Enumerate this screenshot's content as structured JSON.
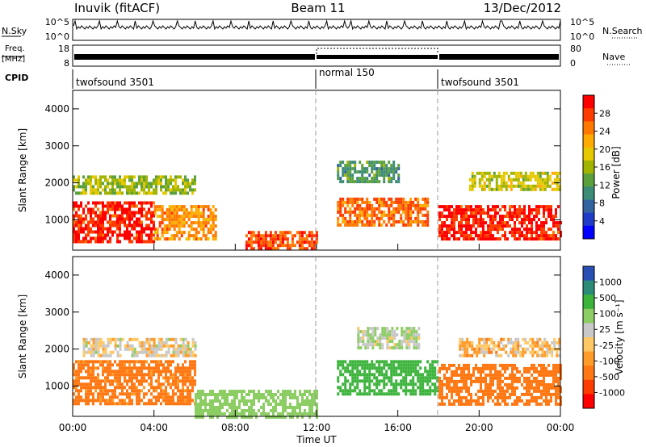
{
  "header": {
    "station": "Inuvik (fitACF)",
    "beam": "Beam 11",
    "date": "13/Dec/2012"
  },
  "noise_panel": {
    "left_label": "N.Sky",
    "right_label": "N.Search",
    "ticks_left": [
      "10^5",
      "10^0"
    ],
    "ticks_right": [
      "10^5",
      "10^0"
    ]
  },
  "freq_panel": {
    "left_label_1": "Freq.",
    "left_label_2": "[MHz]",
    "right_label": "Nave",
    "ticks_left": [
      "18",
      "8"
    ],
    "ticks_right": [
      "80",
      "0"
    ]
  },
  "cpid": {
    "label": "CPID",
    "segments": [
      {
        "name": "twofsound 3501",
        "start_hour": 0,
        "end_hour": 12
      },
      {
        "name": "normal 150",
        "start_hour": 12,
        "end_hour": 18
      },
      {
        "name": "twofsound 3501",
        "start_hour": 18,
        "end_hour": 24
      }
    ]
  },
  "power_colorbar": {
    "label": "Power [dB]",
    "ticks": [
      "28",
      "24",
      "20",
      "16",
      "12",
      "8",
      "4"
    ],
    "colors": [
      "#ff0000",
      "#ff3c00",
      "#ff7800",
      "#ffaa00",
      "#e6c800",
      "#a0b400",
      "#5aa03c",
      "#3c8c78",
      "#3264a0",
      "#1e3cc8",
      "#0000ff"
    ]
  },
  "velocity_colorbar": {
    "label": "Velocity [m s⁻¹]",
    "ticks": [
      "1000",
      "500",
      "100",
      "25",
      "-25",
      "-100",
      "-500",
      "-1000"
    ],
    "colors": [
      "#2850b4",
      "#2d8c78",
      "#3cb43c",
      "#8ccd64",
      "#c8c8c8",
      "#ffc864",
      "#ff9b28",
      "#ff7814",
      "#ff3c00",
      "#ff0000"
    ]
  },
  "chart_data": [
    {
      "type": "heatmap",
      "quantity": "Power",
      "ylabel": "Slant Range [km]",
      "xlabel": "Time UT",
      "xlim": [
        0,
        24
      ],
      "ylim": [
        180,
        4500
      ],
      "yticks": [
        "1000",
        "2000",
        "3000",
        "4000"
      ],
      "xticks": [
        "00:00",
        "04:00",
        "08:00",
        "12:00",
        "16:00",
        "20:00",
        "00:00"
      ],
      "mode_change_hours": [
        12,
        18
      ],
      "bands": [
        {
          "t_start": 0.0,
          "t_end": 4.0,
          "range_low": 400,
          "range_high": 1500,
          "value": 28
        },
        {
          "t_start": 0.0,
          "t_end": 6.0,
          "range_low": 1700,
          "range_high": 2200,
          "value": 14
        },
        {
          "t_start": 4.0,
          "t_end": 7.0,
          "range_low": 500,
          "range_high": 1400,
          "value": 22
        },
        {
          "t_start": 8.5,
          "t_end": 12.0,
          "range_low": 200,
          "range_high": 700,
          "value": 26
        },
        {
          "t_start": 13.0,
          "t_end": 17.5,
          "range_low": 900,
          "range_high": 1600,
          "value": 24
        },
        {
          "t_start": 13.0,
          "t_end": 16.0,
          "range_low": 2000,
          "range_high": 2600,
          "value": 10
        },
        {
          "t_start": 18.0,
          "t_end": 24.0,
          "range_low": 500,
          "range_high": 1400,
          "value": 28
        },
        {
          "t_start": 19.5,
          "t_end": 24.0,
          "range_low": 1800,
          "range_high": 2300,
          "value": 16
        }
      ]
    },
    {
      "type": "heatmap",
      "quantity": "Velocity",
      "ylabel": "Slant Range [km]",
      "xlabel": "Time UT",
      "xlim": [
        0,
        24
      ],
      "ylim": [
        180,
        4500
      ],
      "yticks": [
        "1000",
        "2000",
        "3000",
        "4000"
      ],
      "xticks": [
        "00:00",
        "04:00",
        "08:00",
        "12:00",
        "16:00",
        "20:00",
        "00:00"
      ],
      "mode_change_hours": [
        12,
        18
      ],
      "bands": [
        {
          "t_start": 0.0,
          "t_end": 6.0,
          "range_low": 500,
          "range_high": 1700,
          "value": -200
        },
        {
          "t_start": 0.5,
          "t_end": 6.0,
          "range_low": 1800,
          "range_high": 2300,
          "value": 0
        },
        {
          "t_start": 6.0,
          "t_end": 12.0,
          "range_low": 200,
          "range_high": 900,
          "value": 300
        },
        {
          "t_start": 13.0,
          "t_end": 18.0,
          "range_low": 800,
          "range_high": 1700,
          "value": 600
        },
        {
          "t_start": 14.0,
          "t_end": 17.0,
          "range_low": 2000,
          "range_high": 2600,
          "value": 60
        },
        {
          "t_start": 18.0,
          "t_end": 24.0,
          "range_low": 500,
          "range_high": 1600,
          "value": -300
        },
        {
          "t_start": 19.0,
          "t_end": 24.0,
          "range_low": 1800,
          "range_high": 2300,
          "value": -60
        }
      ]
    }
  ]
}
